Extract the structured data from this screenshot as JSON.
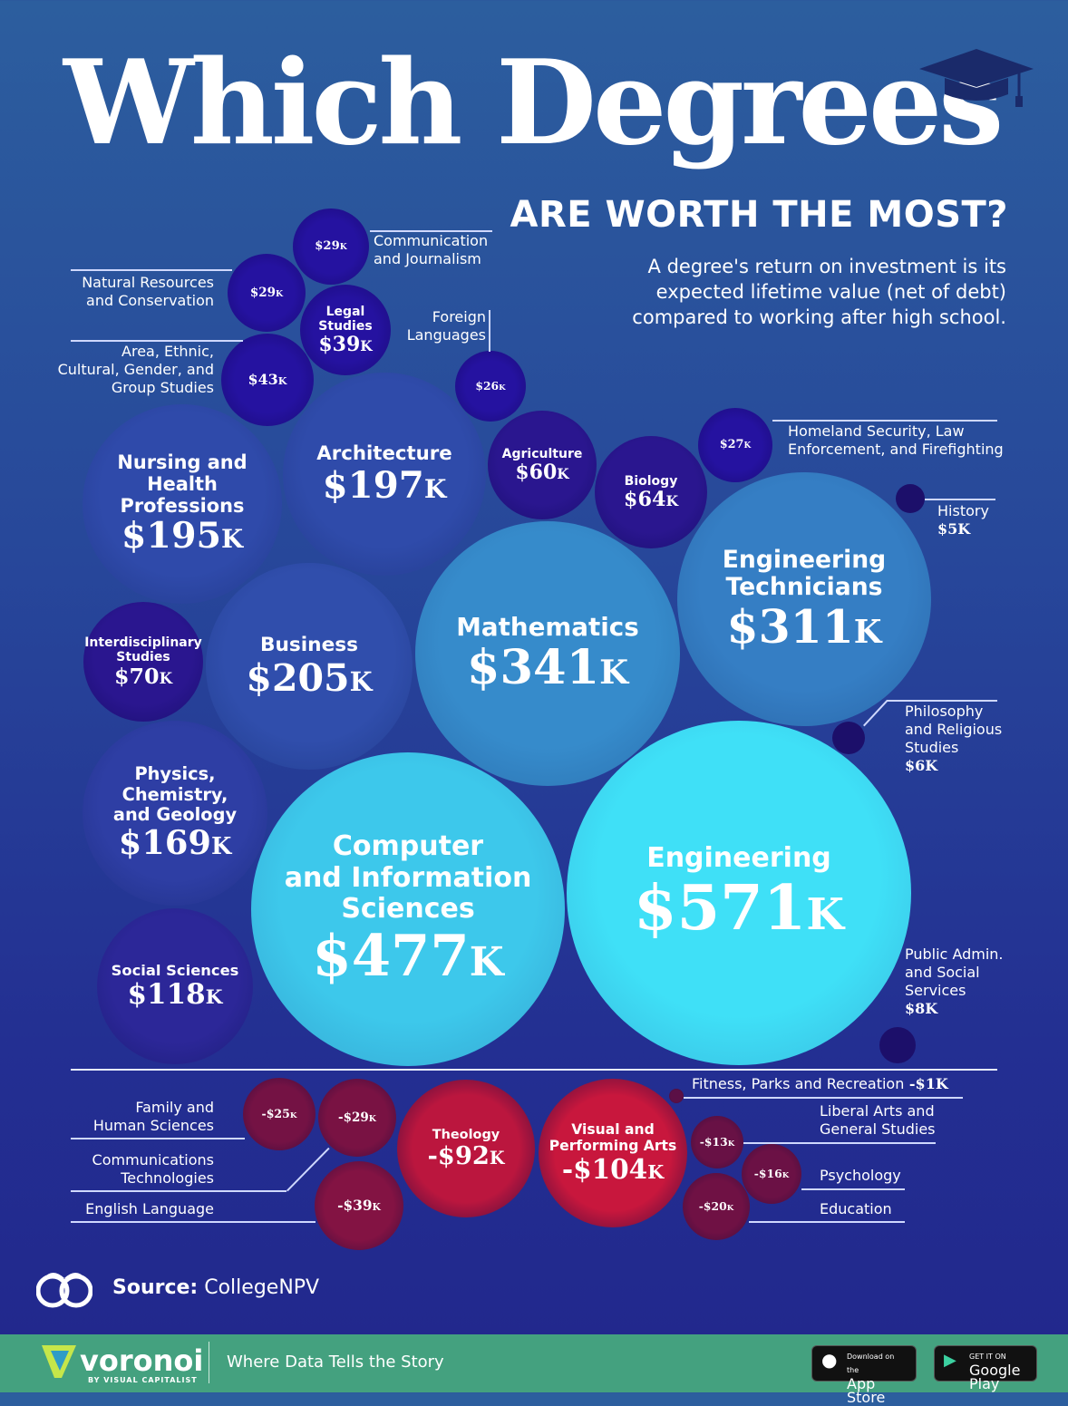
{
  "header": {
    "title": "Which Degrees",
    "subtitle": "ARE WORTH THE MOST?",
    "description": "A degree's return on investment is its\nexpected lifetime value (net of debt)\ncompared to working after high school.",
    "icon": "graduation-cap-icon"
  },
  "colors": {
    "positive_low": "#2a168f",
    "positive_high": "#3fe0f7",
    "negative": "#c8173d",
    "background": "#26409a",
    "footer": "#44a17f"
  },
  "chart_data": {
    "type": "bubble",
    "series": [
      {
        "name": "Communication\nand Journalism",
        "value": 29,
        "display": "$29K",
        "label": "outside"
      },
      {
        "name": "Natural Resources\nand Conservation",
        "value": 29,
        "display": "$29K",
        "label": "outside"
      },
      {
        "name": "Legal\nStudies",
        "value": 39,
        "display": "$39K",
        "label": "inside"
      },
      {
        "name": "Area, Ethnic,\nCultural, Gender, and\nGroup Studies",
        "value": 43,
        "display": "$43K",
        "label": "outside"
      },
      {
        "name": "Foreign\nLanguages",
        "value": 26,
        "display": "$26K",
        "label": "outside"
      },
      {
        "name": "Architecture",
        "value": 197,
        "display": "$197K",
        "label": "inside"
      },
      {
        "name": "Nursing and\nHealth Professions",
        "value": 195,
        "display": "$195K",
        "label": "inside"
      },
      {
        "name": "Agriculture",
        "value": 60,
        "display": "$60K",
        "label": "inside"
      },
      {
        "name": "Biology",
        "value": 64,
        "display": "$64K",
        "label": "inside"
      },
      {
        "name": "Homeland Security, Law\nEnforcement, and Firefighting",
        "value": 27,
        "display": "$27K",
        "label": "outside"
      },
      {
        "name": "History",
        "value": 5,
        "display": "$5K",
        "label": "outside"
      },
      {
        "name": "Engineering\nTechnicians",
        "value": 311,
        "display": "$311K",
        "label": "inside"
      },
      {
        "name": "Mathematics",
        "value": 341,
        "display": "$341K",
        "label": "inside"
      },
      {
        "name": "Business",
        "value": 205,
        "display": "$205K",
        "label": "inside"
      },
      {
        "name": "Interdisciplinary\nStudies",
        "value": 70,
        "display": "$70K",
        "label": "inside"
      },
      {
        "name": "Philosophy\nand Religious\nStudies",
        "value": 6,
        "display": "$6K",
        "label": "outside"
      },
      {
        "name": "Physics,\nChemistry,\nand Geology",
        "value": 169,
        "display": "$169K",
        "label": "inside"
      },
      {
        "name": "Computer\nand Information\nSciences",
        "value": 477,
        "display": "$477K",
        "label": "inside"
      },
      {
        "name": "Engineering",
        "value": 571,
        "display": "$571K",
        "label": "inside"
      },
      {
        "name": "Social Sciences",
        "value": 118,
        "display": "$118K",
        "label": "inside"
      },
      {
        "name": "Public Admin.\nand Social\nServices",
        "value": 8,
        "display": "$8K",
        "label": "outside"
      },
      {
        "name": "Fitness, Parks and Recreation",
        "value": -1,
        "display": "-$1K",
        "label": "outside"
      },
      {
        "name": "Family and\nHuman Sciences",
        "value": -25,
        "display": "-$25K",
        "label": "outside"
      },
      {
        "name": "Communications\nTechnologies",
        "value": -29,
        "display": "-$29K",
        "label": "outside"
      },
      {
        "name": "English Language",
        "value": -39,
        "display": "-$39K",
        "label": "outside"
      },
      {
        "name": "Theology",
        "value": -92,
        "display": "-$92K",
        "label": "inside"
      },
      {
        "name": "Visual and\nPerforming Arts",
        "value": -104,
        "display": "-$104K",
        "label": "inside"
      },
      {
        "name": "Liberal Arts and\nGeneral Studies",
        "value": -13,
        "display": "-$13K",
        "label": "outside"
      },
      {
        "name": "Psychology",
        "value": -16,
        "display": "-$16K",
        "label": "outside"
      },
      {
        "name": "Education",
        "value": -20,
        "display": "-$20K",
        "label": "outside"
      }
    ]
  },
  "source": {
    "label": "Source:",
    "value": "CollegeNPV"
  },
  "footer": {
    "brand": "voronoi",
    "by": "BY VISUAL CAPITALIST",
    "tagline": "Where Data Tells the Story",
    "app_store_small": "Download on the",
    "app_store": "App Store",
    "google_small": "GET IT ON",
    "google": "Google Play"
  }
}
